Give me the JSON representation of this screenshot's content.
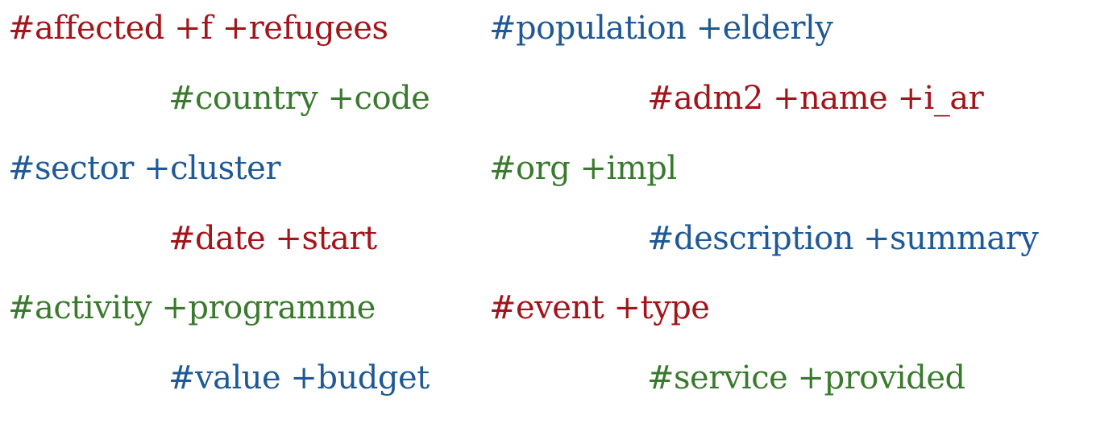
{
  "tags": [
    {
      "text": "#affected +f +refugees",
      "color": "#a3141b"
    },
    {
      "text": "#population +elderly",
      "color": "#1f5996"
    },
    {
      "text": "#country +code",
      "color": "#3a7a2e"
    },
    {
      "text": "#adm2 +name +i_ar",
      "color": "#a3141b"
    },
    {
      "text": "#sector +cluster",
      "color": "#1f5996"
    },
    {
      "text": "#org +impl",
      "color": "#3a7a2e"
    },
    {
      "text": "#date +start",
      "color": "#a3141b"
    },
    {
      "text": "#description +summary",
      "color": "#1f5996"
    },
    {
      "text": "#activity +programme",
      "color": "#3a7a2e"
    },
    {
      "text": "#event +type",
      "color": "#a3141b"
    },
    {
      "text": "#value +budget",
      "color": "#1f5996"
    },
    {
      "text": "#service +provided",
      "color": "#3a7a2e"
    }
  ]
}
